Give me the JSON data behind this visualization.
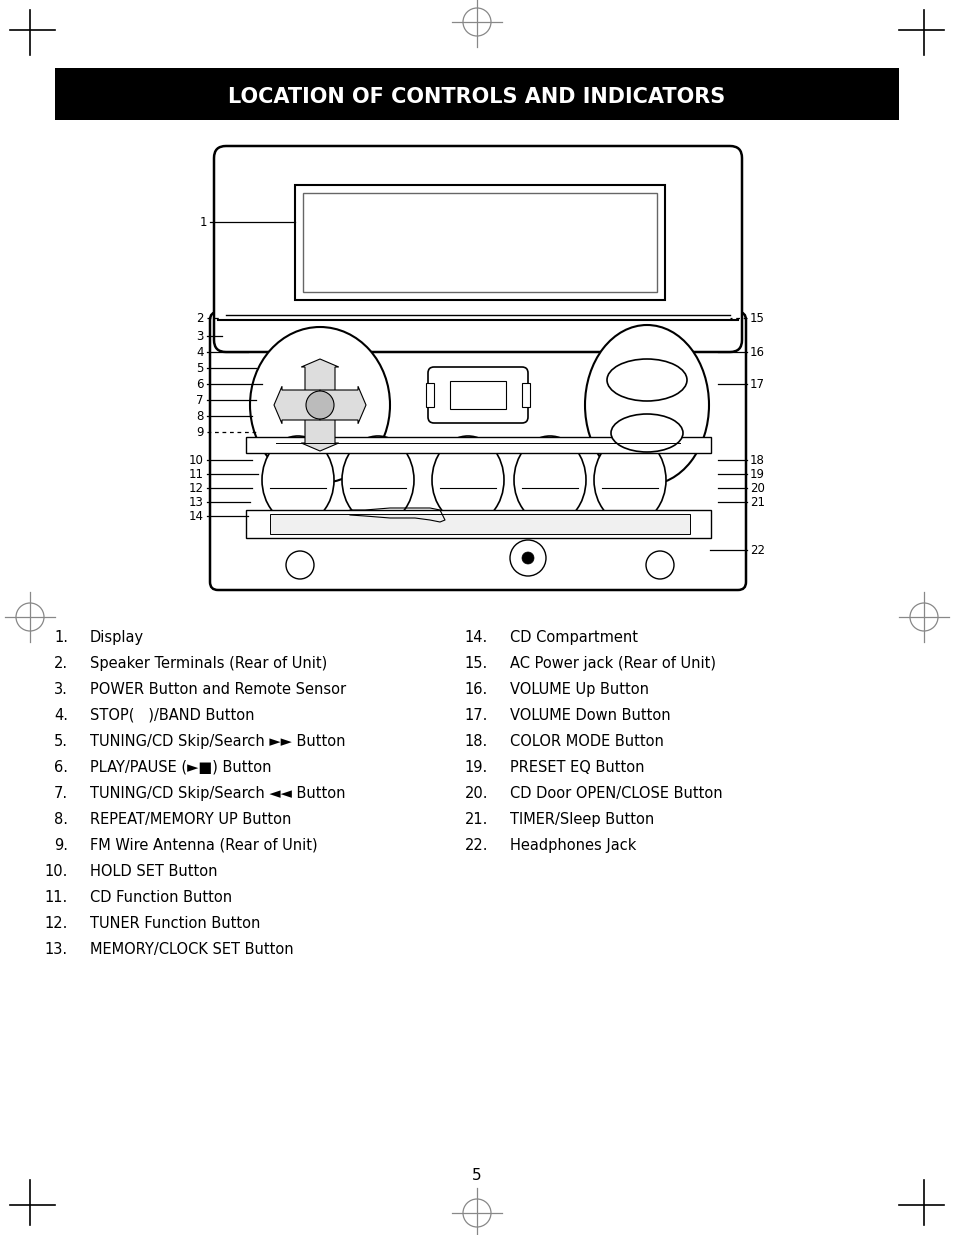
{
  "title": "LOCATION OF CONTROLS AND INDICATORS",
  "page_number": "5",
  "left_items": [
    [
      1,
      "Display"
    ],
    [
      2,
      "Speaker Terminals (Rear of Unit)"
    ],
    [
      3,
      "POWER Button and Remote Sensor"
    ],
    [
      4,
      "STOP(   )/BAND Button"
    ],
    [
      5,
      "TUNING/CD Skip/Search ►► Button"
    ],
    [
      6,
      "PLAY/PAUSE (►■) Button"
    ],
    [
      7,
      "TUNING/CD Skip/Search ◄◄ Button"
    ],
    [
      8,
      "REPEAT/MEMORY UP Button"
    ],
    [
      9,
      "FM Wire Antenna (Rear of Unit)"
    ],
    [
      10,
      "HOLD SET Button"
    ],
    [
      11,
      "CD Function Button"
    ],
    [
      12,
      "TUNER Function Button"
    ],
    [
      13,
      "MEMORY/CLOCK SET Button"
    ]
  ],
  "right_items": [
    [
      14,
      "CD Compartment"
    ],
    [
      15,
      "AC Power jack (Rear of Unit)"
    ],
    [
      16,
      "VOLUME Up Button"
    ],
    [
      17,
      "VOLUME Down Button"
    ],
    [
      18,
      "COLOR MODE Button"
    ],
    [
      19,
      "PRESET EQ Button"
    ],
    [
      20,
      "CD Door OPEN/CLOSE Button"
    ],
    [
      21,
      "TIMER/Sleep Button"
    ],
    [
      22,
      "Headphones Jack"
    ]
  ]
}
